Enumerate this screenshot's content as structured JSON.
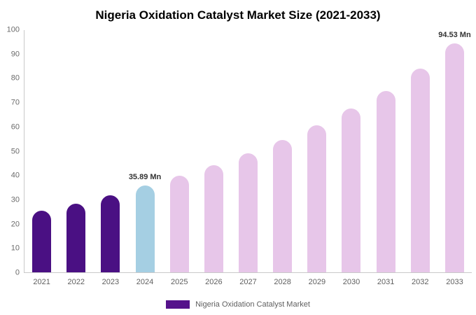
{
  "chart_data": {
    "type": "bar",
    "title": "Nigeria Oxidation Catalyst Market Size (2021-2033)",
    "categories": [
      "2021",
      "2022",
      "2023",
      "2024",
      "2025",
      "2026",
      "2027",
      "2028",
      "2029",
      "2030",
      "2031",
      "2032",
      "2033"
    ],
    "values": [
      25.3,
      28.4,
      31.8,
      35.89,
      39.9,
      44.3,
      49.2,
      54.7,
      60.8,
      67.5,
      75.0,
      84.0,
      94.53
    ],
    "bar_colors": [
      "#4a1083",
      "#4a1083",
      "#4a1083",
      "#a5cfe3",
      "#e7c6e9",
      "#e7c6e9",
      "#e7c6e9",
      "#e7c6e9",
      "#e7c6e9",
      "#e7c6e9",
      "#e7c6e9",
      "#e7c6e9",
      "#e7c6e9"
    ],
    "data_labels": [
      {
        "category": "2024",
        "text": "35.89 Mn"
      },
      {
        "category": "2033",
        "text": "94.53 Mn"
      }
    ],
    "xlabel": "",
    "ylabel": "",
    "ylim": [
      0,
      100
    ],
    "ytick_step": 10,
    "grid": false,
    "legend": {
      "position": "bottom",
      "label": "Nigeria Oxidation Catalyst Market",
      "swatch_color": "#55128b"
    }
  }
}
